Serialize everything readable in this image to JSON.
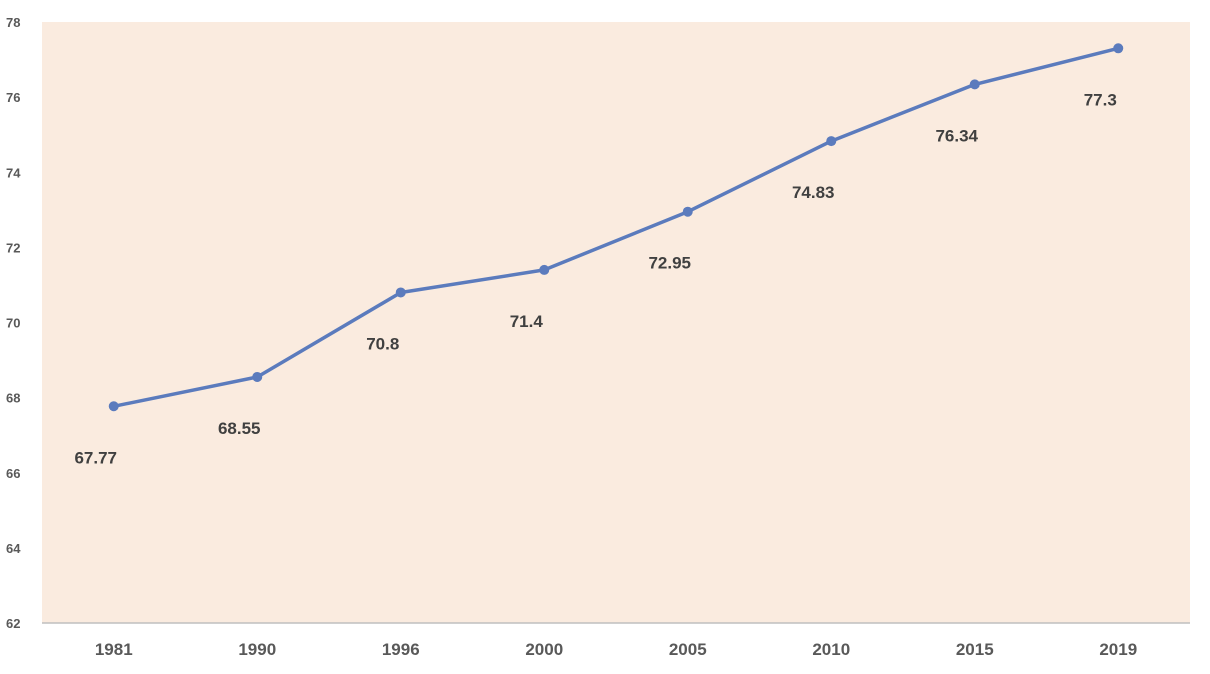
{
  "chart_data": {
    "type": "line",
    "title": "",
    "xlabel": "",
    "ylabel": "",
    "categories": [
      "1981",
      "1990",
      "1996",
      "2000",
      "2005",
      "2010",
      "2015",
      "2019"
    ],
    "series": [
      {
        "values": [
          67.77,
          68.55,
          70.8,
          71.4,
          72.95,
          74.83,
          76.34,
          77.3
        ]
      }
    ],
    "data_labels": [
      "67.77",
      "68.55",
      "70.8",
      "71.4",
      "72.95",
      "74.83",
      "76.34",
      "77.3"
    ],
    "ylim": [
      62,
      78
    ],
    "yticks": [
      62,
      64,
      66,
      68,
      70,
      72,
      74,
      76,
      78
    ],
    "grid": false,
    "legend": "none",
    "colors": {
      "line": "#5B7BBD",
      "plot_background": "#FAEBDF",
      "axis": "#BFBFBF",
      "tick_text": "#595959",
      "label_text": "#404040"
    }
  }
}
